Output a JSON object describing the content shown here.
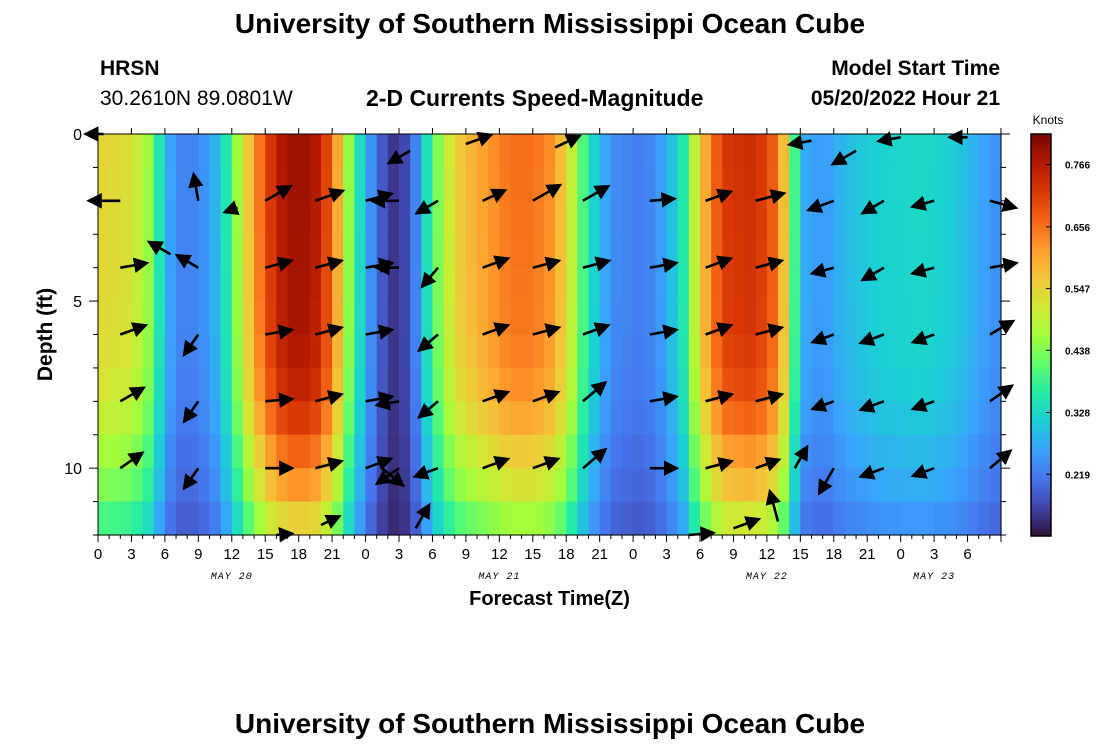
{
  "header": {
    "title": "University of Southern Mississippi Ocean Cube",
    "station": "HRSN",
    "coords": "30.2610N  89.0801W",
    "plot_title": "2-D Currents Speed-Magnitude",
    "model_label": "Model Start Time",
    "model_time": "05/20/2022 Hour 21"
  },
  "footer": {
    "title": "University of Southern Mississippi Ocean Cube"
  },
  "colors": {
    "ramp": [
      "#30123b",
      "#4145ab",
      "#4675ed",
      "#39a2fc",
      "#1bcfd4",
      "#24eca6",
      "#61fc6c",
      "#a4fc3b",
      "#d1e834",
      "#f3c63a",
      "#fe9b2d",
      "#f36315",
      "#d93806",
      "#b11901",
      "#7a0403"
    ],
    "arrow": "#000000"
  },
  "chart_data": {
    "type": "heatmap",
    "title": "2-D Currents Speed-Magnitude",
    "xlabel": "Forecast Time(Z)",
    "ylabel": "Depth (ft)",
    "x_hours": [
      0,
      81
    ],
    "depth_range": [
      0,
      12
    ],
    "x_tick_labels": [
      "0",
      "3",
      "6",
      "9",
      "12",
      "15",
      "18",
      "21",
      "0",
      "3",
      "6",
      "9",
      "12",
      "15",
      "18",
      "21",
      "0",
      "3",
      "6",
      "9",
      "12",
      "15",
      "18",
      "21",
      "0",
      "3",
      "6"
    ],
    "y_ticks": [
      0,
      5,
      10
    ],
    "y_tick_labels": [
      "0",
      "5",
      "10"
    ],
    "date_labels": [
      {
        "hour": 12,
        "text": "MAY 20"
      },
      {
        "hour": 36,
        "text": "MAY 21"
      },
      {
        "hour": 60,
        "text": "MAY 22"
      },
      {
        "hour": 75,
        "text": "MAY 23"
      }
    ],
    "colorbar": {
      "label": "Knots",
      "range": [
        0.11,
        0.82
      ],
      "ticks": [
        0.219,
        0.328,
        0.438,
        0.547,
        0.656,
        0.766
      ]
    },
    "speed_profile_knots": [
      [
        0,
        0.55
      ],
      [
        3,
        0.53
      ],
      [
        4.5,
        0.46
      ],
      [
        6,
        0.3
      ],
      [
        7,
        0.23
      ],
      [
        9,
        0.23
      ],
      [
        11,
        0.3
      ],
      [
        12.5,
        0.46
      ],
      [
        14,
        0.62
      ],
      [
        16,
        0.76
      ],
      [
        18,
        0.8
      ],
      [
        20,
        0.76
      ],
      [
        21.5,
        0.6
      ],
      [
        23,
        0.38
      ],
      [
        25,
        0.2
      ],
      [
        27,
        0.13
      ],
      [
        28.5,
        0.23
      ],
      [
        30,
        0.4
      ],
      [
        32,
        0.55
      ],
      [
        34,
        0.6
      ],
      [
        37,
        0.66
      ],
      [
        39,
        0.66
      ],
      [
        41,
        0.62
      ],
      [
        42.5,
        0.5
      ],
      [
        44,
        0.35
      ],
      [
        46,
        0.24
      ],
      [
        49,
        0.22
      ],
      [
        51,
        0.27
      ],
      [
        52.5,
        0.36
      ],
      [
        54,
        0.56
      ],
      [
        56,
        0.72
      ],
      [
        59,
        0.74
      ],
      [
        61,
        0.66
      ],
      [
        62,
        0.5
      ],
      [
        63,
        0.28
      ],
      [
        65,
        0.25
      ],
      [
        67,
        0.29
      ],
      [
        70,
        0.32
      ],
      [
        74,
        0.33
      ],
      [
        77,
        0.31
      ],
      [
        79,
        0.27
      ],
      [
        81,
        0.24
      ]
    ],
    "depth_attenuation": [
      [
        0,
        1.0
      ],
      [
        6,
        0.98
      ],
      [
        8,
        0.93
      ],
      [
        9.5,
        0.82
      ],
      [
        11,
        0.72
      ],
      [
        12,
        0.58
      ]
    ],
    "vectors": {
      "hours": [
        2,
        9,
        15,
        19.5,
        24,
        27,
        30.5,
        34.5,
        39,
        43.5,
        49.5,
        54.5,
        59,
        66,
        70.5,
        75,
        80
      ],
      "depths": [
        2,
        4,
        6,
        8,
        10
      ],
      "rows": [
        [
          [
            180,
            0.7
          ],
          [
            100,
            0.6
          ],
          [
            30,
            0.65
          ],
          [
            20,
            0.65
          ],
          [
            15,
            0.6
          ],
          [
            180,
            0.6
          ],
          [
            210,
            0.55
          ],
          [
            25,
            0.55
          ],
          [
            30,
            0.7
          ],
          [
            30,
            0.65
          ],
          [
            5,
            0.55
          ],
          [
            20,
            0.6
          ],
          [
            15,
            0.65
          ],
          [
            200,
            0.6
          ],
          [
            210,
            0.55
          ],
          [
            195,
            0.5
          ],
          [
            -15,
            0.6
          ]
        ],
        [
          [
            10,
            0.6
          ],
          [
            150,
            0.55
          ],
          [
            15,
            0.6
          ],
          [
            15,
            0.6
          ],
          [
            10,
            0.6
          ],
          [
            180,
            0.5
          ],
          [
            230,
            0.55
          ],
          [
            20,
            0.6
          ],
          [
            15,
            0.6
          ],
          [
            15,
            0.6
          ],
          [
            10,
            0.6
          ],
          [
            20,
            0.6
          ],
          [
            15,
            0.6
          ],
          [
            195,
            0.5
          ],
          [
            210,
            0.55
          ],
          [
            195,
            0.5
          ],
          [
            10,
            0.6
          ]
        ],
        [
          [
            20,
            0.6
          ],
          [
            235,
            0.55
          ],
          [
            10,
            0.6
          ],
          [
            15,
            0.6
          ],
          [
            10,
            0.6
          ],
          [],
          [
            220,
            0.55
          ],
          [
            20,
            0.6
          ],
          [
            15,
            0.6
          ],
          [
            20,
            0.6
          ],
          [
            10,
            0.6
          ],
          [
            20,
            0.6
          ],
          [
            15,
            0.6
          ],
          [
            200,
            0.5
          ],
          [
            200,
            0.55
          ],
          [
            200,
            0.5
          ],
          [
            30,
            0.6
          ]
        ],
        [
          [
            30,
            0.6
          ],
          [
            235,
            0.55
          ],
          [
            5,
            0.6
          ],
          [
            15,
            0.6
          ],
          [
            10,
            0.6
          ],
          [
            190,
            0.5
          ],
          [
            220,
            0.55
          ],
          [
            20,
            0.6
          ],
          [
            20,
            0.6
          ],
          [
            40,
            0.65
          ],
          [
            10,
            0.6
          ],
          [
            15,
            0.6
          ],
          [
            15,
            0.6
          ],
          [
            200,
            0.5
          ],
          [
            200,
            0.55
          ],
          [
            200,
            0.5
          ],
          [
            35,
            0.6
          ]
        ],
        [
          [
            35,
            0.6
          ],
          [
            235,
            0.55
          ],
          [
            0,
            0.6
          ],
          [
            15,
            0.6
          ],
          [
            20,
            0.6
          ],
          [
            215,
            0.6
          ],
          [
            200,
            0.55
          ],
          [
            20,
            0.6
          ],
          [
            20,
            0.6
          ],
          [
            40,
            0.65
          ],
          [
            0,
            0.6
          ],
          [
            15,
            0.6
          ],
          [
            20,
            0.55
          ],
          [
            240,
            0.65
          ],
          [
            200,
            0.55
          ],
          [
            200,
            0.5
          ],
          [
            40,
            0.6
          ]
        ]
      ]
    },
    "extra_vectors": [
      {
        "hour": 0.5,
        "depth": 0,
        "dir": 180,
        "mag": 0.4
      },
      {
        "hour": 6.5,
        "depth": 3.6,
        "dir": 150,
        "mag": 0.55
      },
      {
        "hour": 12.5,
        "depth": 2.2,
        "dir": 200,
        "mag": 0.3
      },
      {
        "hour": 28,
        "depth": 0.5,
        "dir": 210,
        "mag": 0.55
      },
      {
        "hour": 33,
        "depth": 0.3,
        "dir": 20,
        "mag": 0.6
      },
      {
        "hour": 41,
        "depth": 0.4,
        "dir": 25,
        "mag": 0.6
      },
      {
        "hour": 53,
        "depth": 12,
        "dir": 5,
        "mag": 0.55
      },
      {
        "hour": 57,
        "depth": 11.8,
        "dir": 20,
        "mag": 0.6
      },
      {
        "hour": 61,
        "depth": 11.6,
        "dir": 105,
        "mag": 0.7
      },
      {
        "hour": 62.5,
        "depth": 10,
        "dir": 60,
        "mag": 0.55
      },
      {
        "hour": 64,
        "depth": 0.2,
        "dir": 190,
        "mag": 0.5
      },
      {
        "hour": 68,
        "depth": 0.5,
        "dir": 210,
        "mag": 0.6
      },
      {
        "hour": 72,
        "depth": 0.1,
        "dir": 190,
        "mag": 0.5
      },
      {
        "hour": 78,
        "depth": 0.1,
        "dir": 180,
        "mag": 0.4
      },
      {
        "hour": 28.5,
        "depth": 11.8,
        "dir": 60,
        "mag": 0.6
      },
      {
        "hour": 25.5,
        "depth": 10,
        "dir": -40,
        "mag": 0.6
      },
      {
        "hour": 20,
        "depth": 11.7,
        "dir": 25,
        "mag": 0.45
      },
      {
        "hour": 16,
        "depth": 12,
        "dir": 5,
        "mag": 0.35
      }
    ]
  }
}
